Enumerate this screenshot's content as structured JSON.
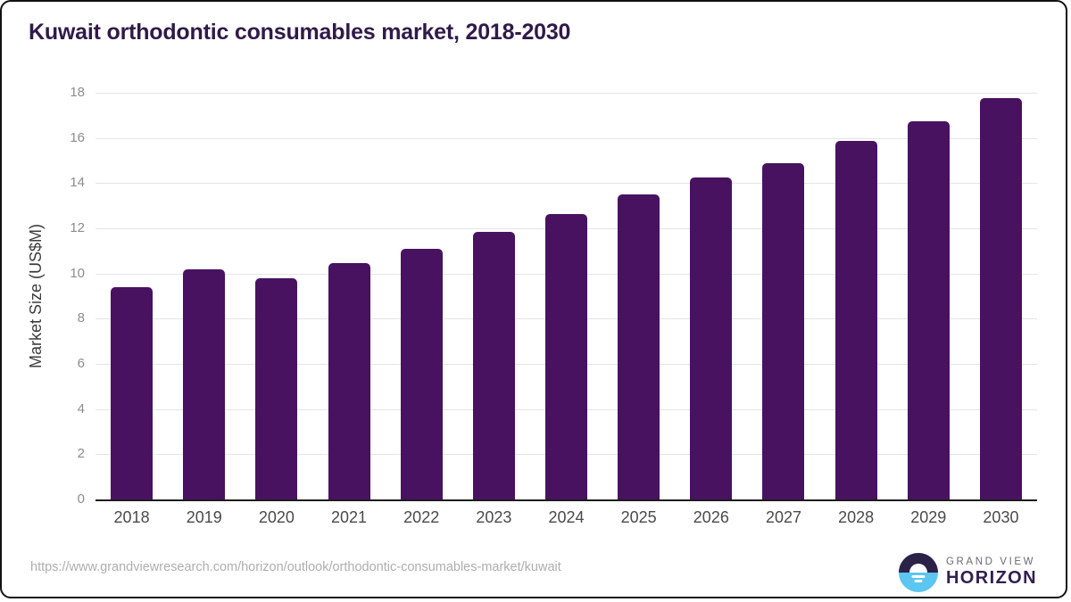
{
  "title": "Kuwait orthodontic consumables market, 2018-2030",
  "source_url": "https://www.grandviewresearch.com/horizon/outlook/orthodontic-consumables-market/kuwait",
  "logo": {
    "line1": "GRAND VIEW",
    "line2": "HORIZON",
    "icon": "sunrise-horizon-icon",
    "icon_top_color": "#2c2147",
    "icon_bottom_color": "#5bc6f0"
  },
  "colors": {
    "title": "#301a49",
    "bar": "#481260",
    "gridline": "#e5e5e5",
    "axis_line": "#1c1c1c",
    "y_tick_text": "#8c8c8c",
    "x_tick_text": "#4a4a4a",
    "source_text": "#aeaeae"
  },
  "chart_data": {
    "type": "bar",
    "title": "Kuwait orthodontic consumables market, 2018-2030",
    "categories": [
      "2018",
      "2019",
      "2020",
      "2021",
      "2022",
      "2023",
      "2024",
      "2025",
      "2026",
      "2027",
      "2028",
      "2029",
      "2030"
    ],
    "values": [
      9.4,
      10.2,
      9.8,
      10.45,
      11.1,
      11.85,
      12.65,
      13.5,
      14.25,
      14.9,
      15.85,
      16.75,
      17.75
    ],
    "xlabel": "",
    "ylabel": "Market Size (US$M)",
    "ylim": [
      0,
      18
    ],
    "yticks": [
      0,
      2,
      4,
      6,
      8,
      10,
      12,
      14,
      16,
      18
    ],
    "grid": true,
    "legend": "none",
    "bar_color": "#481260"
  }
}
